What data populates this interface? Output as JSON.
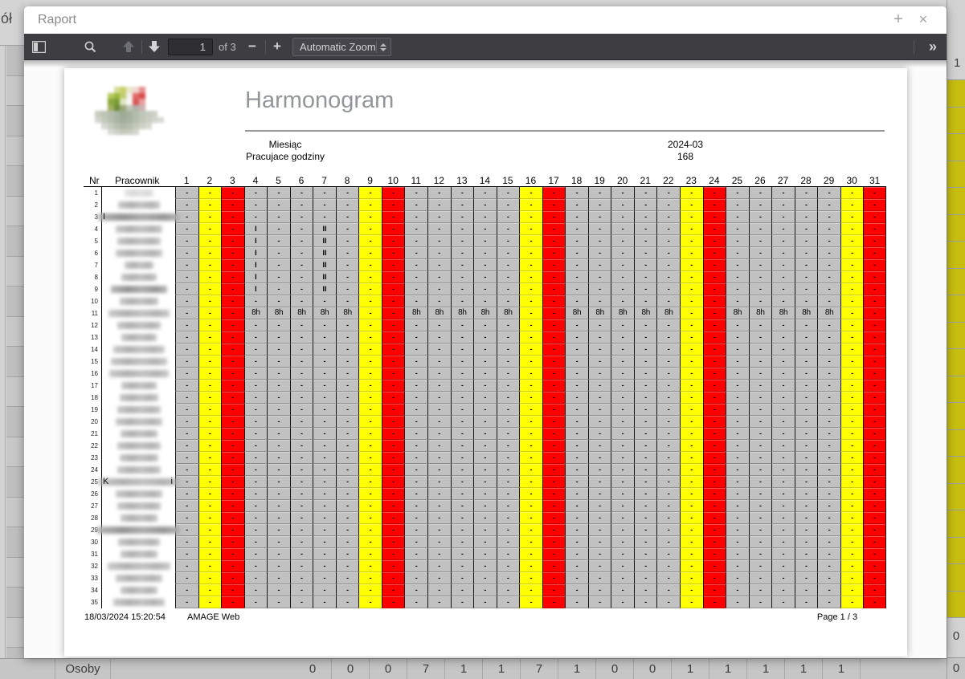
{
  "window": {
    "title": "Raport",
    "add_label": "+",
    "close_label": "×"
  },
  "toolbar": {
    "page_value": "1",
    "page_of": "of 3",
    "zoom_label": "Automatic Zoom",
    "zoom_out_glyph": "−",
    "zoom_in_glyph": "+",
    "more_tools_glyph": "»"
  },
  "background": {
    "top_left_text": "ół",
    "right_column": {
      "header": "1",
      "upper_value": "0",
      "lower_value": "0"
    },
    "bottom_row": {
      "label": "Osoby",
      "values": [
        "0",
        "0",
        "0",
        "7",
        "1",
        "1",
        "7",
        "1",
        "0",
        "0",
        "1",
        "1",
        "1",
        "1",
        "1"
      ]
    }
  },
  "report": {
    "title": "Harmonogram",
    "meta": {
      "month_label": "Miesiąc",
      "month_value": "2024-03",
      "hours_label": "Pracujace godziny",
      "hours_value": "168"
    },
    "footer": {
      "generated": "18/03/2024 15:20:54",
      "app": "AMAGE Web",
      "page": "Page 1 / 3"
    },
    "table": {
      "nr_header": "Nr",
      "employee_header": "Pracownik",
      "days": 31,
      "rows": 35,
      "saturdays": [
        2,
        9,
        16,
        23,
        30
      ],
      "sundays": [
        3,
        10,
        17,
        24,
        31
      ],
      "default_cell": "-",
      "marks": {
        "rows": [
          4,
          5,
          6,
          7,
          8,
          9
        ],
        "cells": {
          "4": "I",
          "7": "II"
        }
      },
      "eight_hour": {
        "row": 11,
        "label": "8h",
        "days": [
          4,
          5,
          6,
          7,
          8,
          11,
          12,
          13,
          14,
          15,
          18,
          19,
          20,
          21,
          22,
          25,
          26,
          27,
          28,
          29
        ]
      },
      "name_blur_widths": [
        36,
        52,
        102,
        58,
        54,
        58,
        36,
        44,
        70,
        48,
        76,
        54,
        44,
        64,
        70,
        74,
        44,
        48,
        54,
        58,
        46,
        54,
        48,
        54,
        102,
        58,
        54,
        46,
        104,
        52,
        46,
        78,
        58,
        46,
        64
      ],
      "dark_rows": [
        3,
        9,
        29
      ],
      "light_rows": [
        1
      ],
      "name_fragments": [
        {
          "row": 3,
          "left": "I"
        },
        {
          "row": 25,
          "left": "K",
          "right": "i"
        }
      ]
    },
    "logo_pixels": [
      [
        "",
        "",
        "",
        "#d8dc9a",
        "#c6d06a",
        "#e8e8c8",
        "#f0d8d0",
        "#e89090",
        "",
        "",
        "",
        ""
      ],
      [
        "",
        "",
        "#b6c85c",
        "#9cb83e",
        "#c0cc70",
        "#f2f2ee",
        "#e06a6a",
        "#d84c4c",
        "",
        "",
        "",
        ""
      ],
      [
        "",
        "",
        "#8aa83c",
        "#7a9c34",
        "#dce6c2",
        "#f6f6f4",
        "#d85858",
        "#e8a0a0",
        "",
        "",
        "",
        ""
      ],
      [
        "",
        "",
        "#a0b060",
        "#6c8c3a",
        "#98a878",
        "#c0c4b8",
        "#b0b4ac",
        "#c8b4b0",
        "",
        "",
        "",
        ""
      ],
      [
        "#c8ccc0",
        "#bcc4b4",
        "#b4bcae",
        "#a8b4a0",
        "#9cab94",
        "#a5b19c",
        "#b2bcab",
        "#bec6b8",
        "#c6ccc0",
        "#ccd0c6",
        "",
        ""
      ],
      [
        "#d0d4cc",
        "#c2c8bc",
        "#b6beae",
        "#aab4a2",
        "#a2ae9a",
        "#a8b2a0",
        "#b4bcac",
        "#c0c6b8",
        "#c8cec2",
        "#d0d4ca",
        "#d6d8d2",
        ""
      ],
      [
        "",
        "#d4d6d0",
        "#c6ccc0",
        "#b8c0b2",
        "#b0b8a8",
        "#b6bcae",
        "#c2c8ba",
        "#ced2c6",
        "#d6d8d0",
        "",
        "",
        ""
      ],
      [
        "",
        "",
        "#d8dad4",
        "#ccd0c6",
        "#c4c8bc",
        "#c8ccc0",
        "#d2d4cc",
        "",
        "",
        "",
        "",
        ""
      ]
    ]
  },
  "colors": {
    "saturday": "#ffff00",
    "sunday": "#ff0000",
    "weekday_cell": "#c1c1c1",
    "toolbar_bg": "#3d3d42",
    "bg_right_yellow": "#c7be10"
  }
}
